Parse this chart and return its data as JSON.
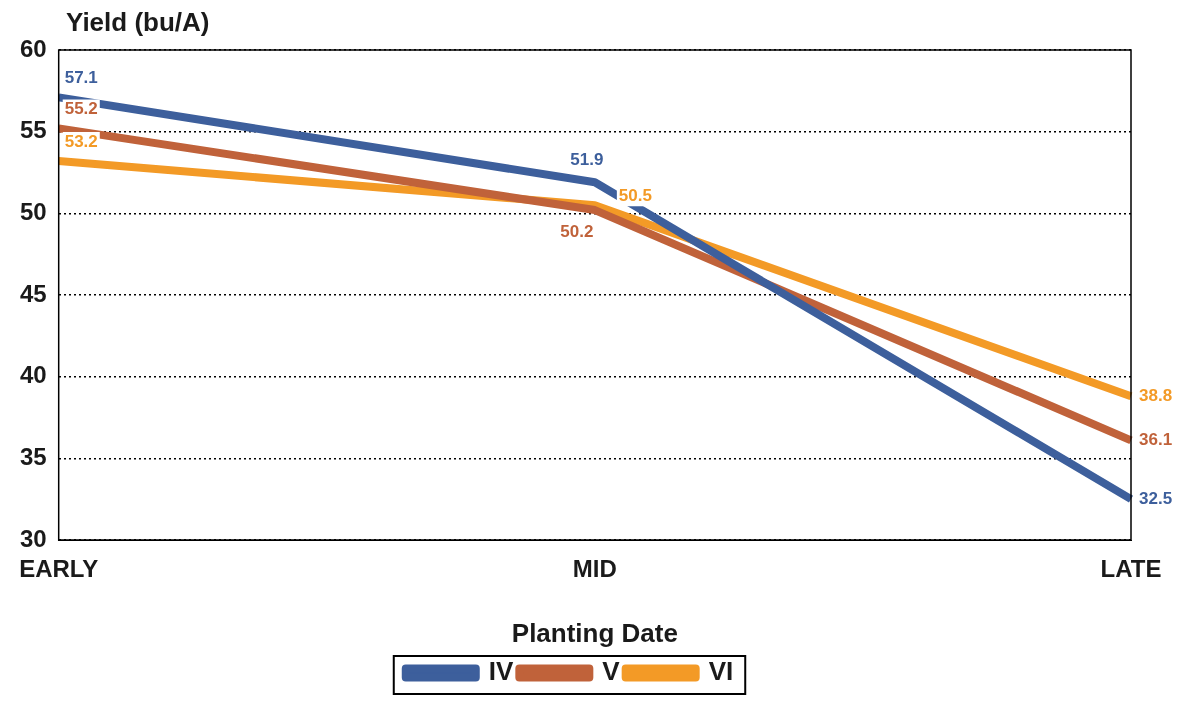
{
  "chart_data": {
    "type": "line",
    "ylabel": "Yield (bu/A)",
    "xlabel": "Planting Date",
    "categories": [
      "EARLY",
      "MID",
      "LATE"
    ],
    "series": [
      {
        "name": "IV",
        "color": "#3d5f9c",
        "values": [
          57.1,
          51.9,
          32.5
        ]
      },
      {
        "name": "V",
        "color": "#c0623a",
        "values": [
          55.2,
          50.2,
          36.1
        ]
      },
      {
        "name": "VI",
        "color": "#f39a26",
        "values": [
          53.2,
          50.5,
          38.8
        ]
      }
    ],
    "ylim": [
      30,
      60
    ],
    "yticks": [
      30,
      35,
      40,
      45,
      50,
      55,
      60
    ],
    "grid": "y",
    "legend": "bottom",
    "data_labels": true,
    "marker": "none",
    "line_style": "solid"
  }
}
